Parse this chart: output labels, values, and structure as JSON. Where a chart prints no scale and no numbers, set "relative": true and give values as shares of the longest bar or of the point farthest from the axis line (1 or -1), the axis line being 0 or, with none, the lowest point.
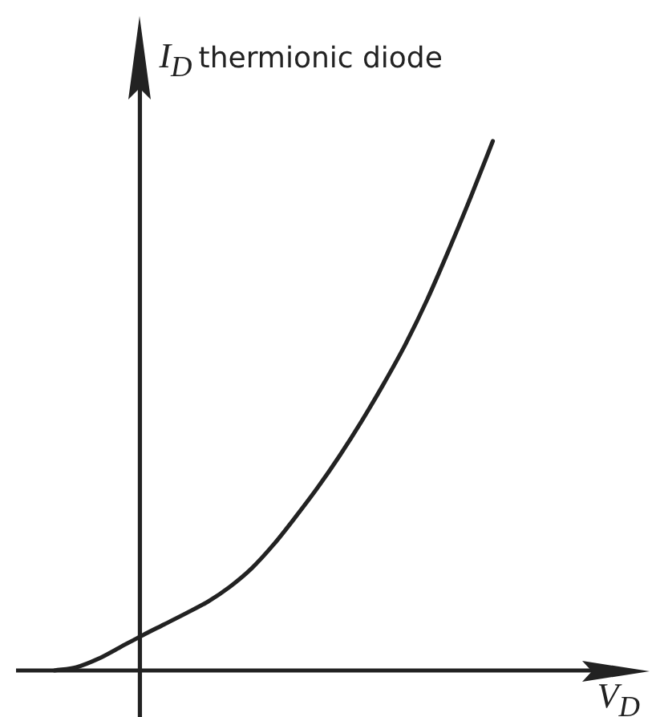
{
  "chart_data": {
    "type": "line",
    "title": "thermionic diode",
    "xlabel": "V$_{D}$",
    "ylabel": "I$_{D}$",
    "relative": true,
    "tick_labels": false,
    "categories": [
      null,
      null,
      null,
      null,
      null,
      null,
      null,
      null,
      null,
      null,
      null,
      null,
      null,
      null,
      null,
      null,
      null,
      null,
      null,
      null,
      null,
      null,
      null,
      null,
      null,
      null,
      null,
      null,
      null,
      null
    ],
    "series": [
      {
        "color": "#222222",
        "values": [
          null,
          null,
          0,
          0.006,
          0.022,
          0.044,
          0.066,
          0.087,
          0.108,
          0.13,
          0.158,
          0.193,
          0.238,
          0.29,
          0.345,
          0.405,
          0.47,
          0.54,
          0.615,
          0.7,
          0.795,
          0.895,
          1,
          null,
          null,
          null,
          null,
          null,
          null,
          null
        ]
      }
    ]
  }
}
